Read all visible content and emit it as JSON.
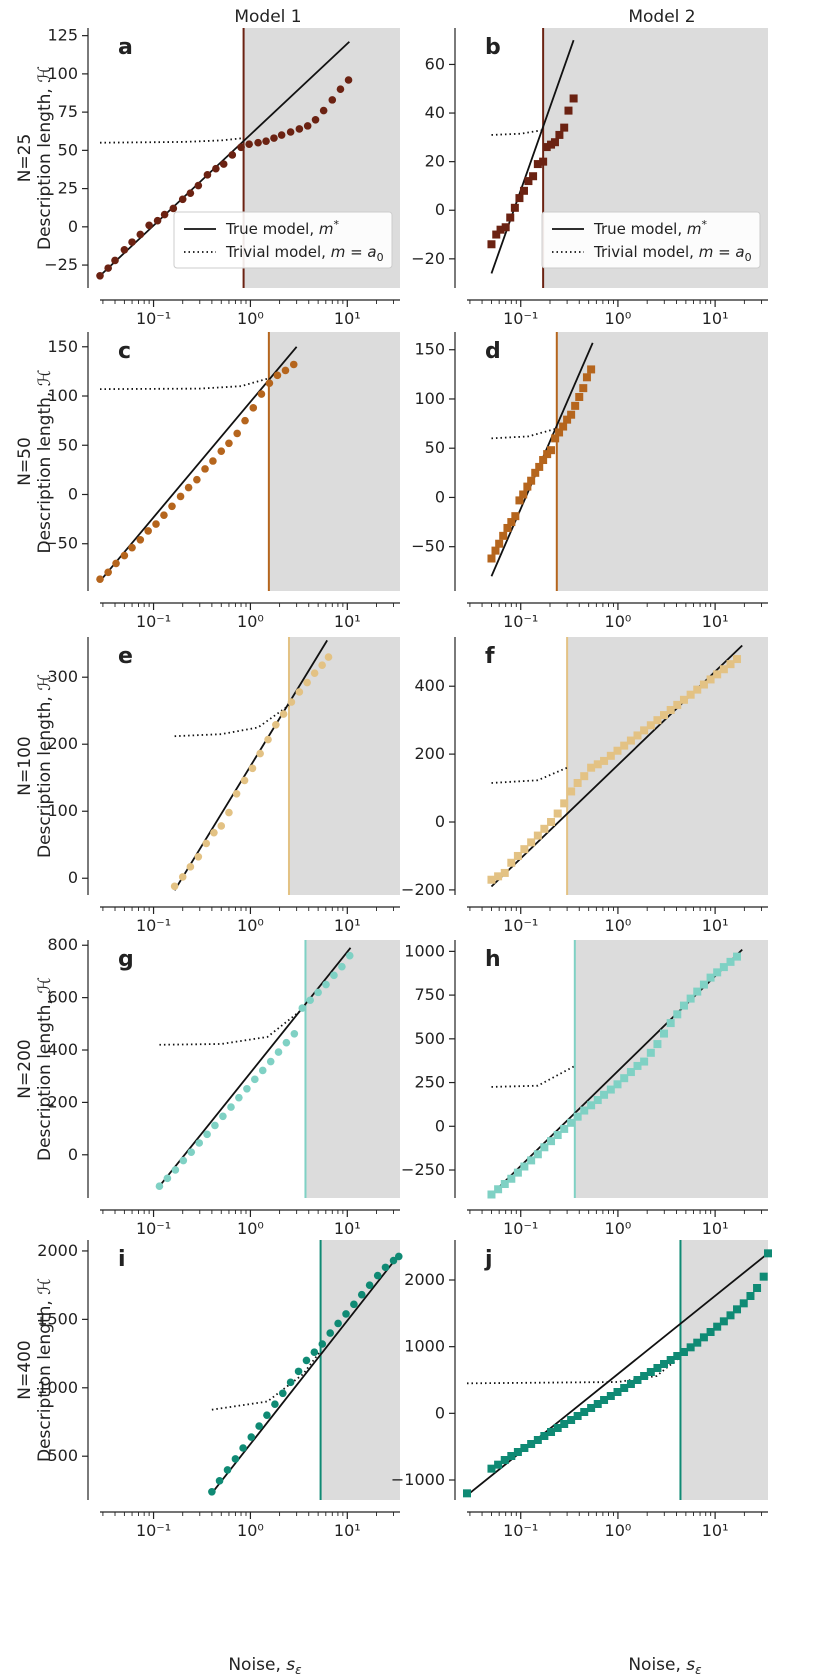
{
  "colors": {
    "N25": "#6b2212",
    "N50": "#b5651d",
    "N100": "#e3c284",
    "N200": "#7fd1c4",
    "N400": "#0f8a74",
    "shade": "#dcdcdc",
    "line": "#111111"
  },
  "figure": {
    "column_titles": [
      "Model 1",
      "Model 2"
    ],
    "xlabel_prefix": "Noise, ",
    "xlabel_symbol": "s",
    "xlabel_sub": "ε",
    "ylabel": "Description length, ℋ",
    "legend": {
      "true_prefix": "True model, ",
      "true_math": "m",
      "true_sup": "*",
      "trivial_prefix": "Trivial model, ",
      "trivial_math": "m = a",
      "trivial_sub": "0"
    }
  },
  "chart_data": [
    {
      "id": "a",
      "label": "a",
      "row_label": "N=25",
      "model": "Model 1",
      "color_key": "N25",
      "marker": "circle",
      "type": "scatter",
      "xscale": "log",
      "xlim": [
        0.028,
        35
      ],
      "ylim": [
        -40,
        130
      ],
      "yticks": [
        -25,
        0,
        25,
        50,
        75,
        100,
        125
      ],
      "xticks": [
        0.1,
        1,
        10
      ],
      "xtick_labels": [
        "10⁻¹",
        "10⁰",
        "10¹"
      ],
      "threshold": 0.85,
      "legend": true,
      "true_line": {
        "x": [
          0.028,
          10.5
        ],
        "y": [
          -32,
          121
        ]
      },
      "trivial_line": {
        "x": [
          0.028,
          0.2,
          0.5,
          0.85
        ],
        "y": [
          55,
          55.5,
          56.5,
          58
        ]
      },
      "points": {
        "x": [
          0.028,
          0.034,
          0.04,
          0.05,
          0.06,
          0.073,
          0.09,
          0.11,
          0.13,
          0.16,
          0.2,
          0.24,
          0.29,
          0.36,
          0.44,
          0.53,
          0.65,
          0.8,
          0.97,
          1.2,
          1.45,
          1.75,
          2.1,
          2.6,
          3.2,
          3.9,
          4.7,
          5.7,
          7,
          8.5,
          10.3
        ],
        "y": [
          -32,
          -27,
          -22,
          -15,
          -10,
          -5,
          1,
          4,
          8,
          12,
          18,
          22,
          27,
          34,
          38,
          41,
          47,
          52,
          54,
          55,
          56,
          58,
          60,
          62,
          64,
          66,
          70,
          76,
          83,
          90,
          96
        ]
      }
    },
    {
      "id": "b",
      "label": "b",
      "row_label": "N=25",
      "model": "Model 2",
      "color_key": "N25",
      "marker": "square",
      "type": "scatter",
      "xscale": "log",
      "xlim": [
        0.028,
        35
      ],
      "ylim": [
        -32,
        75
      ],
      "yticks": [
        -20,
        0,
        20,
        40,
        60
      ],
      "xticks": [
        0.1,
        1,
        10
      ],
      "xtick_labels": [
        "10⁻¹",
        "10⁰",
        "10¹"
      ],
      "threshold": 0.17,
      "legend": true,
      "true_line": {
        "x": [
          0.05,
          0.35
        ],
        "y": [
          -26,
          70
        ]
      },
      "trivial_line": {
        "x": [
          0.05,
          0.1,
          0.17
        ],
        "y": [
          31,
          31.5,
          33
        ]
      },
      "points": {
        "x": [
          0.05,
          0.056,
          0.062,
          0.07,
          0.078,
          0.087,
          0.097,
          0.108,
          0.12,
          0.134,
          0.15,
          0.17,
          0.185,
          0.205,
          0.225,
          0.25,
          0.28,
          0.31,
          0.35
        ],
        "y": [
          -14,
          -10,
          -8,
          -7,
          -3,
          1,
          5,
          8,
          12,
          14,
          19,
          20,
          26,
          27,
          28,
          31,
          34,
          41,
          46
        ]
      }
    },
    {
      "id": "c",
      "label": "c",
      "row_label": "N=50",
      "model": "Model 1",
      "color_key": "N50",
      "marker": "circle",
      "type": "scatter",
      "xscale": "log",
      "xlim": [
        0.028,
        35
      ],
      "ylim": [
        -98,
        165
      ],
      "yticks": [
        -50,
        0,
        50,
        100,
        150
      ],
      "xticks": [
        0.1,
        1,
        10
      ],
      "xtick_labels": [
        "10⁻¹",
        "10⁰",
        "10¹"
      ],
      "threshold": 1.55,
      "legend": false,
      "true_line": {
        "x": [
          0.028,
          3
        ],
        "y": [
          -88,
          150
        ]
      },
      "trivial_line": {
        "x": [
          0.028,
          0.3,
          0.8,
          1.55
        ],
        "y": [
          107,
          107.5,
          110,
          118
        ]
      },
      "points": {
        "x": [
          0.028,
          0.034,
          0.041,
          0.05,
          0.06,
          0.073,
          0.088,
          0.106,
          0.128,
          0.155,
          0.19,
          0.23,
          0.28,
          0.34,
          0.41,
          0.5,
          0.6,
          0.73,
          0.88,
          1.07,
          1.3,
          1.57,
          1.9,
          2.3,
          2.8
        ],
        "y": [
          -86,
          -79,
          -70,
          -62,
          -54,
          -46,
          -37,
          -30,
          -21,
          -12,
          -2,
          7,
          15,
          26,
          34,
          44,
          52,
          62,
          75,
          88,
          102,
          113,
          121,
          126,
          132
        ]
      }
    },
    {
      "id": "d",
      "label": "d",
      "row_label": "N=50",
      "model": "Model 2",
      "color_key": "N50",
      "marker": "square",
      "type": "scatter",
      "xscale": "log",
      "xlim": [
        0.028,
        35
      ],
      "ylim": [
        -95,
        168
      ],
      "yticks": [
        -50,
        0,
        50,
        100,
        150
      ],
      "xticks": [
        0.1,
        1,
        10
      ],
      "xtick_labels": [
        "10⁻¹",
        "10⁰",
        "10¹"
      ],
      "threshold": 0.235,
      "legend": false,
      "true_line": {
        "x": [
          0.05,
          0.55
        ],
        "y": [
          -80,
          157
        ]
      },
      "trivial_line": {
        "x": [
          0.05,
          0.12,
          0.235
        ],
        "y": [
          60,
          62,
          70
        ]
      },
      "points": {
        "x": [
          0.05,
          0.055,
          0.06,
          0.066,
          0.073,
          0.08,
          0.088,
          0.097,
          0.106,
          0.117,
          0.128,
          0.141,
          0.155,
          0.17,
          0.187,
          0.205,
          0.226,
          0.248,
          0.273,
          0.3,
          0.33,
          0.363,
          0.4,
          0.44,
          0.48,
          0.53
        ],
        "y": [
          -62,
          -54,
          -47,
          -39,
          -31,
          -25,
          -19,
          -3,
          3,
          11,
          17,
          25,
          31,
          38,
          44,
          48,
          60,
          66,
          72,
          79,
          84,
          93,
          102,
          111,
          122,
          130
        ]
      }
    },
    {
      "id": "e",
      "label": "e",
      "row_label": "N=100",
      "model": "Model 1",
      "color_key": "N100",
      "marker": "circle",
      "type": "scatter",
      "xscale": "log",
      "xlim": [
        0.028,
        35
      ],
      "ylim": [
        -25,
        360
      ],
      "yticks": [
        0,
        100,
        200,
        300
      ],
      "xticks": [
        0.1,
        1,
        10
      ],
      "xtick_labels": [
        "10⁻¹",
        "10⁰",
        "10¹"
      ],
      "threshold": 2.5,
      "legend": false,
      "true_line": {
        "x": [
          0.165,
          6.2
        ],
        "y": [
          -18,
          355
        ]
      },
      "trivial_line": {
        "x": [
          0.165,
          0.5,
          1.2,
          2.5
        ],
        "y": [
          212,
          215,
          225,
          258
        ]
      },
      "points": {
        "x": [
          0.165,
          0.2,
          0.24,
          0.29,
          0.35,
          0.42,
          0.5,
          0.6,
          0.72,
          0.87,
          1.05,
          1.26,
          1.52,
          1.83,
          2.2,
          2.65,
          3.2,
          3.85,
          4.6,
          5.5,
          6.4
        ],
        "y": [
          -12,
          2,
          17,
          32,
          52,
          68,
          78,
          98,
          126,
          146,
          164,
          186,
          207,
          229,
          245,
          263,
          278,
          292,
          306,
          318,
          330
        ]
      }
    },
    {
      "id": "f",
      "label": "f",
      "row_label": "N=100",
      "model": "Model 2",
      "color_key": "N100",
      "marker": "square",
      "type": "scatter",
      "xscale": "log",
      "xlim": [
        0.028,
        35
      ],
      "ylim": [
        -215,
        545
      ],
      "yticks": [
        -200,
        0,
        200,
        400
      ],
      "xticks": [
        0.1,
        1,
        10
      ],
      "xtick_labels": [
        "10⁻¹",
        "10⁰",
        "10¹"
      ],
      "threshold": 0.3,
      "legend": false,
      "true_line": {
        "x": [
          0.05,
          19
        ],
        "y": [
          -190,
          520
        ]
      },
      "trivial_line": {
        "x": [
          0.05,
          0.15,
          0.3
        ],
        "y": [
          115,
          123,
          160
        ]
      },
      "points": {
        "x": [
          0.05,
          0.0585,
          0.0685,
          0.08,
          0.0935,
          0.109,
          0.128,
          0.15,
          0.175,
          0.205,
          0.24,
          0.28,
          0.33,
          0.385,
          0.45,
          0.53,
          0.62,
          0.72,
          0.845,
          0.99,
          1.16,
          1.36,
          1.59,
          1.86,
          2.18,
          2.55,
          2.98,
          3.49,
          4.08,
          4.78,
          5.6,
          6.55,
          7.67,
          8.98,
          10.5,
          12.3,
          14.4,
          16.8
        ],
        "y": [
          -170,
          -160,
          -150,
          -120,
          -100,
          -80,
          -60,
          -40,
          -20,
          0,
          25,
          55,
          90,
          115,
          135,
          160,
          170,
          180,
          195,
          210,
          225,
          240,
          255,
          270,
          285,
          300,
          315,
          330,
          345,
          360,
          375,
          390,
          405,
          420,
          435,
          450,
          465,
          480
        ]
      }
    },
    {
      "id": "g",
      "label": "g",
      "row_label": "N=200",
      "model": "Model 1",
      "color_key": "N200",
      "marker": "circle",
      "type": "scatter",
      "xscale": "log",
      "xlim": [
        0.028,
        35
      ],
      "ylim": [
        -165,
        820
      ],
      "yticks": [
        0,
        200,
        400,
        600,
        800
      ],
      "xticks": [
        0.1,
        1,
        10
      ],
      "xtick_labels": [
        "10⁻¹",
        "10⁰",
        "10¹"
      ],
      "threshold": 3.7,
      "legend": false,
      "true_line": {
        "x": [
          0.115,
          10.8
        ],
        "y": [
          -120,
          790
        ]
      },
      "trivial_line": {
        "x": [
          0.115,
          0.5,
          1.5,
          3.7
        ],
        "y": [
          420,
          423,
          450,
          565
        ]
      },
      "points": {
        "x": [
          0.115,
          0.139,
          0.168,
          0.203,
          0.245,
          0.296,
          0.357,
          0.43,
          0.52,
          0.63,
          0.76,
          0.92,
          1.11,
          1.34,
          1.62,
          1.95,
          2.35,
          2.84,
          3.43,
          4.14,
          5,
          6.03,
          7.28,
          8.8,
          10.6
        ],
        "y": [
          -120,
          -90,
          -58,
          -22,
          10,
          45,
          78,
          112,
          147,
          182,
          218,
          252,
          288,
          322,
          356,
          392,
          428,
          462,
          560,
          590,
          620,
          650,
          685,
          718,
          760
        ]
      }
    },
    {
      "id": "h",
      "label": "h",
      "row_label": "N=200",
      "model": "Model 2",
      "color_key": "N200",
      "marker": "square",
      "type": "scatter",
      "xscale": "log",
      "xlim": [
        0.028,
        35
      ],
      "ylim": [
        -410,
        1065
      ],
      "yticks": [
        -250,
        0,
        250,
        500,
        750,
        1000
      ],
      "xticks": [
        0.1,
        1,
        10
      ],
      "xtick_labels": [
        "10⁻¹",
        "10⁰",
        "10¹"
      ],
      "threshold": 0.36,
      "legend": false,
      "true_line": {
        "x": [
          0.05,
          19
        ],
        "y": [
          -390,
          1010
        ]
      },
      "trivial_line": {
        "x": [
          0.05,
          0.15,
          0.36
        ],
        "y": [
          225,
          232,
          345
        ]
      },
      "points": {
        "x": [
          0.05,
          0.0585,
          0.0685,
          0.08,
          0.0935,
          0.109,
          0.128,
          0.15,
          0.175,
          0.205,
          0.24,
          0.28,
          0.33,
          0.385,
          0.45,
          0.53,
          0.62,
          0.72,
          0.845,
          0.99,
          1.16,
          1.36,
          1.59,
          1.86,
          2.18,
          2.55,
          2.98,
          3.49,
          4.08,
          4.78,
          5.6,
          6.55,
          7.67,
          8.98,
          10.5,
          12.3,
          14.4,
          16.8
        ],
        "y": [
          -390,
          -360,
          -330,
          -300,
          -265,
          -230,
          -195,
          -160,
          -120,
          -85,
          -50,
          -15,
          20,
          55,
          90,
          120,
          150,
          180,
          210,
          240,
          275,
          310,
          345,
          370,
          420,
          470,
          530,
          590,
          640,
          690,
          730,
          770,
          810,
          850,
          880,
          910,
          940,
          970
        ]
      }
    },
    {
      "id": "i",
      "label": "i",
      "row_label": "N=400",
      "model": "Model 1",
      "color_key": "N400",
      "marker": "circle",
      "type": "scatter",
      "xscale": "log",
      "xlim": [
        0.028,
        35
      ],
      "ylim": [
        180,
        2080
      ],
      "yticks": [
        500,
        1000,
        1500,
        2000
      ],
      "xticks": [
        0.1,
        1,
        10
      ],
      "xtick_labels": [
        "10⁻¹",
        "10⁰",
        "10¹"
      ],
      "threshold": 5.3,
      "legend": false,
      "true_line": {
        "x": [
          0.4,
          34
        ],
        "y": [
          230,
          1970
        ]
      },
      "trivial_line": {
        "x": [
          0.4,
          1.5,
          3.5,
          5.3
        ],
        "y": [
          840,
          900,
          1100,
          1270
        ]
      },
      "points": {
        "x": [
          0.4,
          0.48,
          0.58,
          0.7,
          0.84,
          1.02,
          1.23,
          1.48,
          1.79,
          2.16,
          2.6,
          3.14,
          3.79,
          4.57,
          5.52,
          6.66,
          8.04,
          9.7,
          11.7,
          14.1,
          17,
          20.6,
          24.8,
          30,
          34
        ],
        "y": [
          240,
          320,
          400,
          480,
          560,
          640,
          720,
          800,
          880,
          960,
          1040,
          1120,
          1200,
          1260,
          1320,
          1400,
          1470,
          1540,
          1610,
          1680,
          1750,
          1820,
          1880,
          1930,
          1960
        ]
      }
    },
    {
      "id": "j",
      "label": "j",
      "row_label": "N=400",
      "model": "Model 2",
      "color_key": "N400",
      "marker": "square",
      "type": "scatter",
      "xscale": "log",
      "xlim": [
        0.028,
        35
      ],
      "ylim": [
        -1300,
        2600
      ],
      "yticks": [
        -1000,
        0,
        1000,
        2000
      ],
      "xticks": [
        0.1,
        1,
        10
      ],
      "xtick_labels": [
        "10⁻¹",
        "10⁰",
        "10¹"
      ],
      "threshold": 4.4,
      "legend": false,
      "true_line": {
        "x": [
          0.028,
          35
        ],
        "y": [
          -1230,
          2400
        ]
      },
      "trivial_line": {
        "x": [
          0.028,
          1,
          2.5,
          4.4
        ],
        "y": [
          450,
          470,
          560,
          850
        ]
      },
      "points": {
        "x": [
          0.028,
          0.05,
          0.0585,
          0.0685,
          0.08,
          0.0935,
          0.109,
          0.128,
          0.15,
          0.175,
          0.205,
          0.24,
          0.28,
          0.33,
          0.385,
          0.45,
          0.53,
          0.62,
          0.72,
          0.845,
          0.99,
          1.16,
          1.36,
          1.59,
          1.86,
          2.18,
          2.55,
          2.98,
          3.49,
          4.08,
          4.78,
          5.6,
          6.55,
          7.67,
          8.98,
          10.5,
          12.3,
          14.4,
          16.8,
          19.7,
          23.1,
          27,
          31.6,
          35
        ],
        "y": [
          -1200,
          -830,
          -770,
          -700,
          -640,
          -580,
          -520,
          -460,
          -400,
          -340,
          -280,
          -220,
          -160,
          -100,
          -40,
          20,
          80,
          140,
          200,
          260,
          320,
          380,
          440,
          500,
          560,
          620,
          680,
          740,
          800,
          860,
          920,
          990,
          1060,
          1140,
          1220,
          1300,
          1380,
          1470,
          1560,
          1650,
          1760,
          1880,
          2050,
          2400
        ]
      }
    }
  ]
}
